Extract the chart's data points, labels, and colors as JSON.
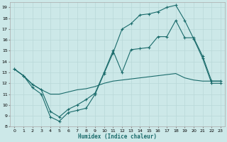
{
  "xlabel": "Humidex (Indice chaleur)",
  "bg_color": "#cce8e8",
  "grid_color": "#b8d8d8",
  "line_color": "#1a6b6b",
  "xlim": [
    -0.5,
    23.5
  ],
  "ylim": [
    8,
    19.5
  ],
  "yticks": [
    8,
    9,
    10,
    11,
    12,
    13,
    14,
    15,
    16,
    17,
    18,
    19
  ],
  "xticks": [
    0,
    1,
    2,
    3,
    4,
    5,
    6,
    7,
    8,
    9,
    10,
    11,
    12,
    13,
    14,
    15,
    16,
    17,
    18,
    19,
    20,
    21,
    22,
    23
  ],
  "curve1_x": [
    0,
    1,
    2,
    3,
    4,
    5,
    6,
    7,
    8,
    9,
    10,
    11,
    12,
    13,
    14,
    15,
    16,
    17,
    18,
    19,
    20,
    21,
    22,
    23
  ],
  "curve1_y": [
    13.3,
    12.7,
    11.6,
    11.0,
    8.9,
    8.5,
    9.3,
    9.5,
    9.7,
    11.0,
    12.9,
    14.8,
    17.0,
    17.5,
    18.3,
    18.4,
    18.6,
    19.0,
    19.2,
    17.8,
    16.1,
    14.3,
    12.0,
    12.0
  ],
  "curve2_x": [
    0,
    1,
    2,
    3,
    4,
    5,
    6,
    7,
    8,
    9,
    10,
    11,
    12,
    13,
    14,
    15,
    16,
    17,
    18,
    19,
    20,
    21,
    22,
    23
  ],
  "curve2_y": [
    13.3,
    12.7,
    11.9,
    11.4,
    11.0,
    11.0,
    11.2,
    11.4,
    11.5,
    11.7,
    12.0,
    12.2,
    12.3,
    12.4,
    12.5,
    12.6,
    12.7,
    12.8,
    12.9,
    12.5,
    12.3,
    12.2,
    12.2,
    12.2
  ],
  "curve3_x": [
    0,
    1,
    2,
    3,
    4,
    5,
    6,
    7,
    8,
    9,
    10,
    11,
    12,
    13,
    14,
    15,
    16,
    17,
    18,
    19,
    20,
    21,
    22,
    23
  ],
  "curve3_y": [
    13.3,
    12.7,
    11.9,
    11.4,
    9.4,
    8.9,
    9.6,
    10.0,
    10.5,
    11.1,
    13.0,
    15.0,
    13.0,
    15.1,
    15.2,
    15.3,
    16.3,
    16.3,
    17.8,
    16.2,
    16.2,
    14.5,
    12.2,
    12.2
  ]
}
